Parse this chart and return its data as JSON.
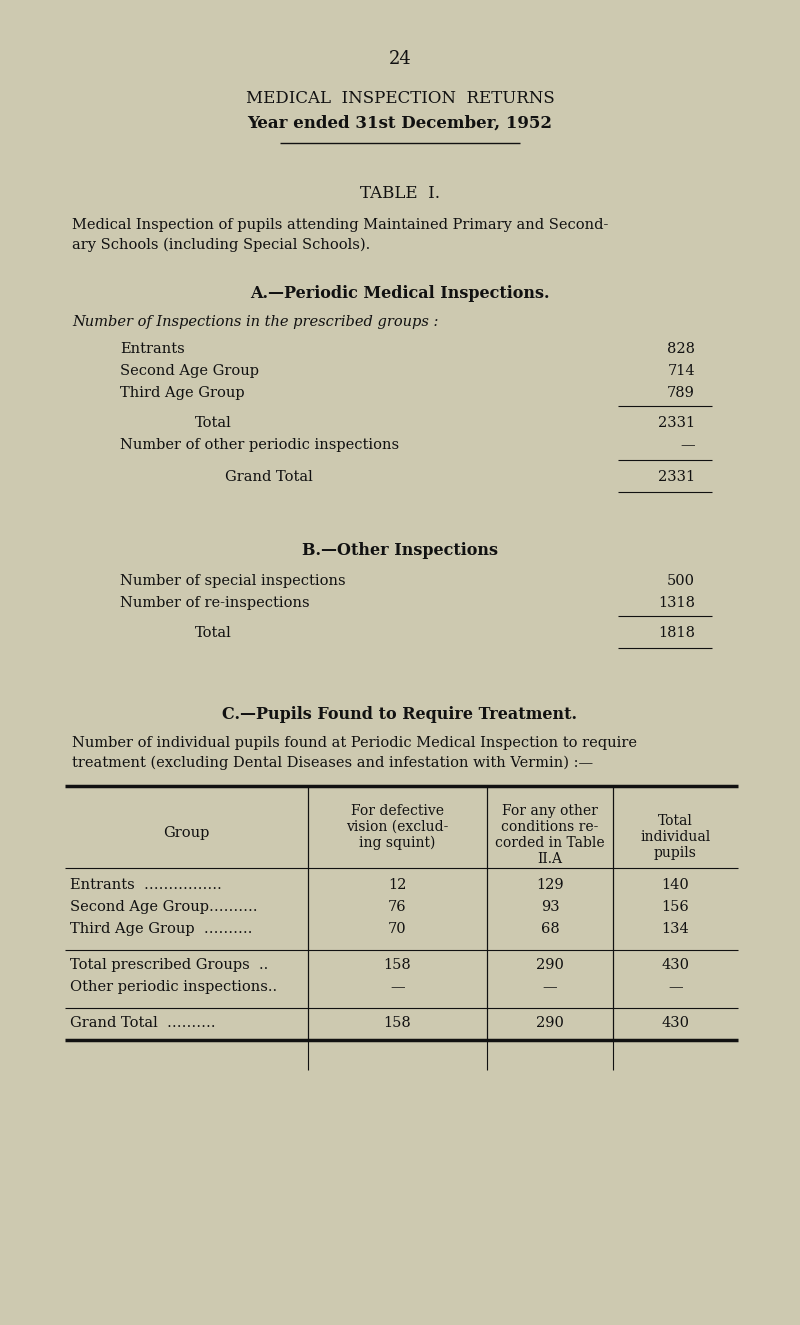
{
  "bg_color": "#cdc9b0",
  "text_color": "#111111",
  "page_number": "24",
  "main_title": "MEDICAL  INSPECTION  RETURNS",
  "subtitle": "Year ended 31st December, 1952",
  "table_title": "TABLE  I.",
  "table_desc_line1": "Medical Inspection of pupils attending Maintained Primary and Second-",
  "table_desc_line2": "ary Schools (including Special Schools).",
  "section_a_title": "A.—Periodic Medical Inspections.",
  "section_a_subtitle": "Number of Inspections in the prescribed groups :",
  "section_a_rows": [
    [
      "Entrants",
      "828"
    ],
    [
      "Second Age Group",
      "714"
    ],
    [
      "Third Age Group",
      "789"
    ]
  ],
  "section_a_total_label": "Total",
  "section_a_total_value": "2331",
  "section_a_other_label": "Number of other periodic inspections",
  "section_a_other_value": "—",
  "section_a_grand_label": "Grand Total",
  "section_a_grand_value": "2331",
  "section_b_title": "B.—Other Inspections",
  "section_b_rows": [
    [
      "Number of special inspections",
      "500"
    ],
    [
      "Number of re-inspections",
      "1318"
    ]
  ],
  "section_b_total_label": "Total",
  "section_b_total_value": "1818",
  "section_c_title": "C.—Pupils Found to Require Treatment.",
  "section_c_desc_line1": "Number of individual pupils found at Periodic Medical Inspection to require",
  "section_c_desc_line2": "treatment (excluding Dental Diseases and infestation with Vermin) :—",
  "table_col0_header": "Group",
  "table_col1_header": "For defective\nvision (exclud-\ning squint)",
  "table_col2_header": "For any other\nconditions re-\ncorded in Table\nII.A",
  "table_col3_header": "Total\nindividual\npupils",
  "table_data_rows": [
    [
      "Entrants  …………….",
      "12",
      "129",
      "140"
    ],
    [
      "Second Age Group……….",
      "76",
      "93",
      "156"
    ],
    [
      "Third Age Group  ……….",
      "70",
      "68",
      "134"
    ]
  ],
  "table_subtotal_rows": [
    [
      "Total prescribed Groups  ..",
      "158",
      "290",
      "430"
    ],
    [
      "Other periodic inspections..",
      "—",
      "—",
      "—"
    ]
  ],
  "table_grand_row": [
    "Grand Total  ……….",
    "158",
    "290",
    "430"
  ],
  "col_positions": [
    65,
    308,
    487,
    613,
    738
  ]
}
